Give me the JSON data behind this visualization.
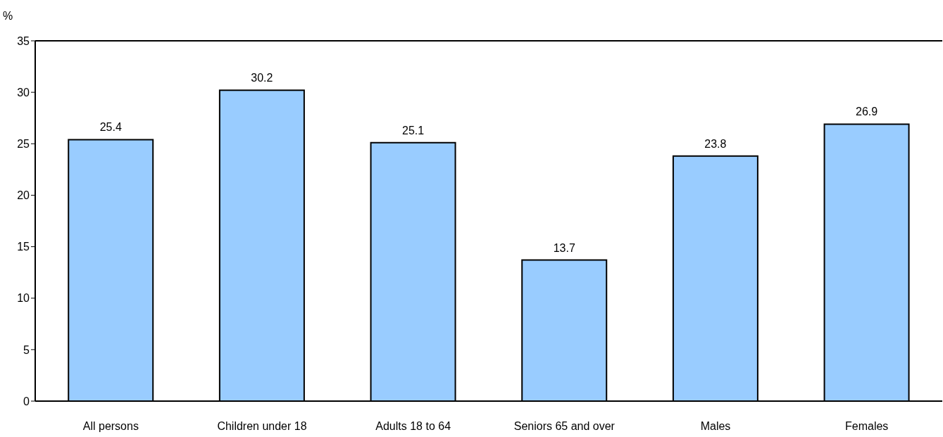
{
  "chart_data": {
    "type": "bar",
    "ylabel": "%",
    "categories": [
      "All persons",
      "Children under 18",
      "Adults 18 to 64",
      "Seniors 65 and over",
      "Males",
      "Females"
    ],
    "values": [
      25.4,
      30.2,
      25.1,
      13.7,
      23.8,
      26.9
    ],
    "color": "#99ccff",
    "ylim": [
      0,
      35
    ],
    "yticks": [
      0,
      5,
      10,
      15,
      20,
      25,
      30,
      35
    ],
    "data_labels": true,
    "grid": false
  }
}
